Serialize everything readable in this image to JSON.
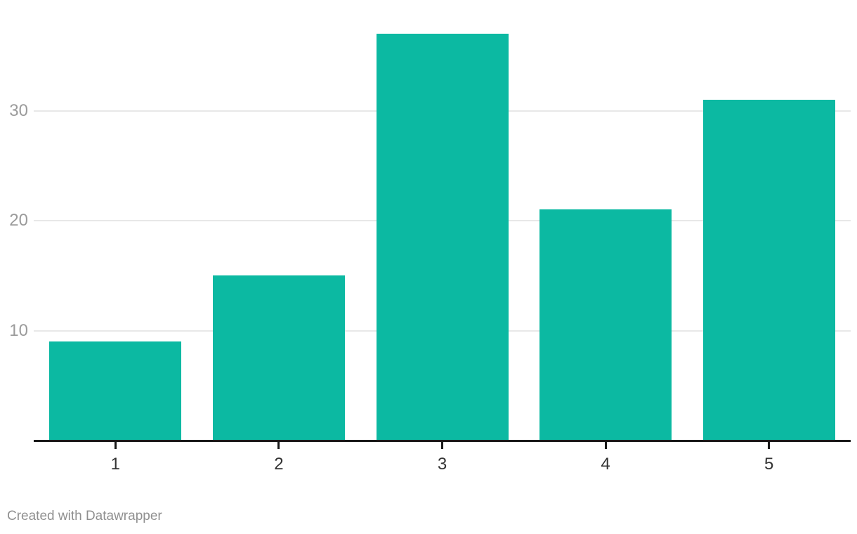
{
  "chart_data": {
    "type": "bar",
    "categories": [
      "1",
      "2",
      "3",
      "4",
      "5"
    ],
    "values": [
      9,
      15,
      37,
      21,
      31
    ],
    "title": "",
    "xlabel": "",
    "ylabel": "",
    "ylim": [
      0,
      37
    ],
    "yticks": [
      10,
      20,
      30
    ],
    "grid": true,
    "legend": false
  },
  "colors": {
    "bar": "#0cb9a2",
    "gridline": "#e8e8e8",
    "axis_line": "#191919",
    "y_tick_label": "#9b9b9b",
    "x_tick_label": "#333333",
    "footer_text": "#909090",
    "background": "#ffffff"
  },
  "footer": {
    "attribution": "Created with Datawrapper"
  }
}
